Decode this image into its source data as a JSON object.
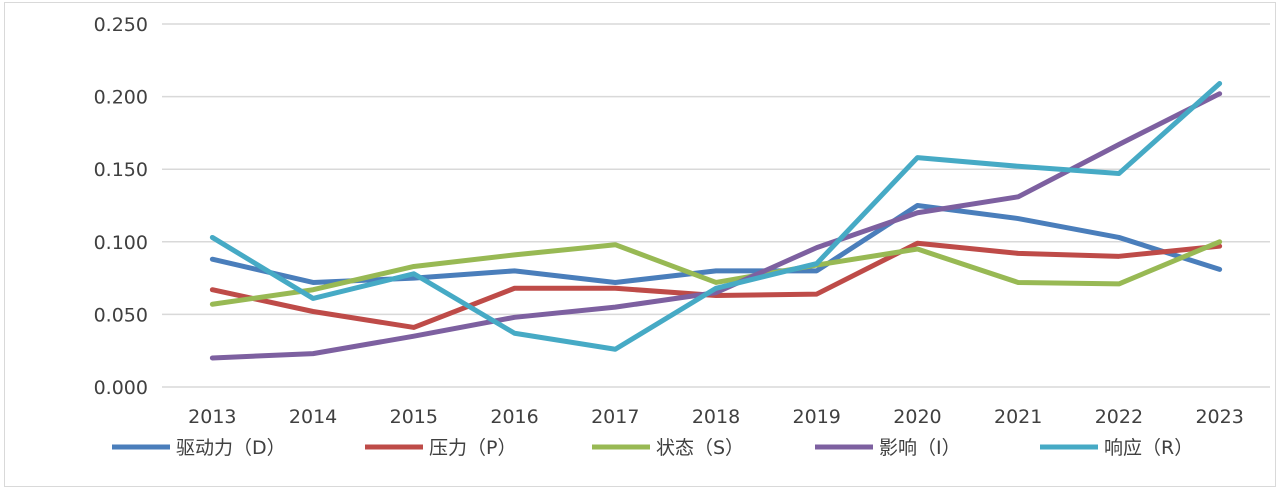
{
  "chart_data": {
    "type": "line",
    "title": "",
    "xlabel": "",
    "ylabel": "",
    "categories": [
      "2013",
      "2014",
      "2015",
      "2016",
      "2017",
      "2018",
      "2019",
      "2020",
      "2021",
      "2022",
      "2023"
    ],
    "ylim": [
      0,
      0.25
    ],
    "yticks": [
      "0.000",
      "0.050",
      "0.100",
      "0.150",
      "0.200",
      "0.250"
    ],
    "grid": true,
    "legend_position": "bottom",
    "series": [
      {
        "name": "驱动力（D）",
        "color": "#4a7ebb",
        "values": [
          0.088,
          0.072,
          0.075,
          0.08,
          0.072,
          0.08,
          0.08,
          0.125,
          0.116,
          0.103,
          0.081
        ]
      },
      {
        "name": "压力（P）",
        "color": "#be4b48",
        "values": [
          0.067,
          0.052,
          0.041,
          0.068,
          0.068,
          0.063,
          0.064,
          0.099,
          0.092,
          0.09,
          0.097
        ]
      },
      {
        "name": "状态（S）",
        "color": "#98b954",
        "values": [
          0.057,
          0.067,
          0.083,
          0.091,
          0.098,
          0.072,
          0.084,
          0.095,
          0.072,
          0.071,
          0.1
        ]
      },
      {
        "name": "影响（I）",
        "color": "#7d60a0",
        "values": [
          0.02,
          0.023,
          0.035,
          0.048,
          0.055,
          0.065,
          0.096,
          0.12,
          0.131,
          0.167,
          0.202
        ]
      },
      {
        "name": "响应（R）",
        "color": "#46aac5",
        "values": [
          0.103,
          0.061,
          0.078,
          0.037,
          0.026,
          0.068,
          0.085,
          0.158,
          0.152,
          0.147,
          0.209
        ]
      }
    ]
  }
}
